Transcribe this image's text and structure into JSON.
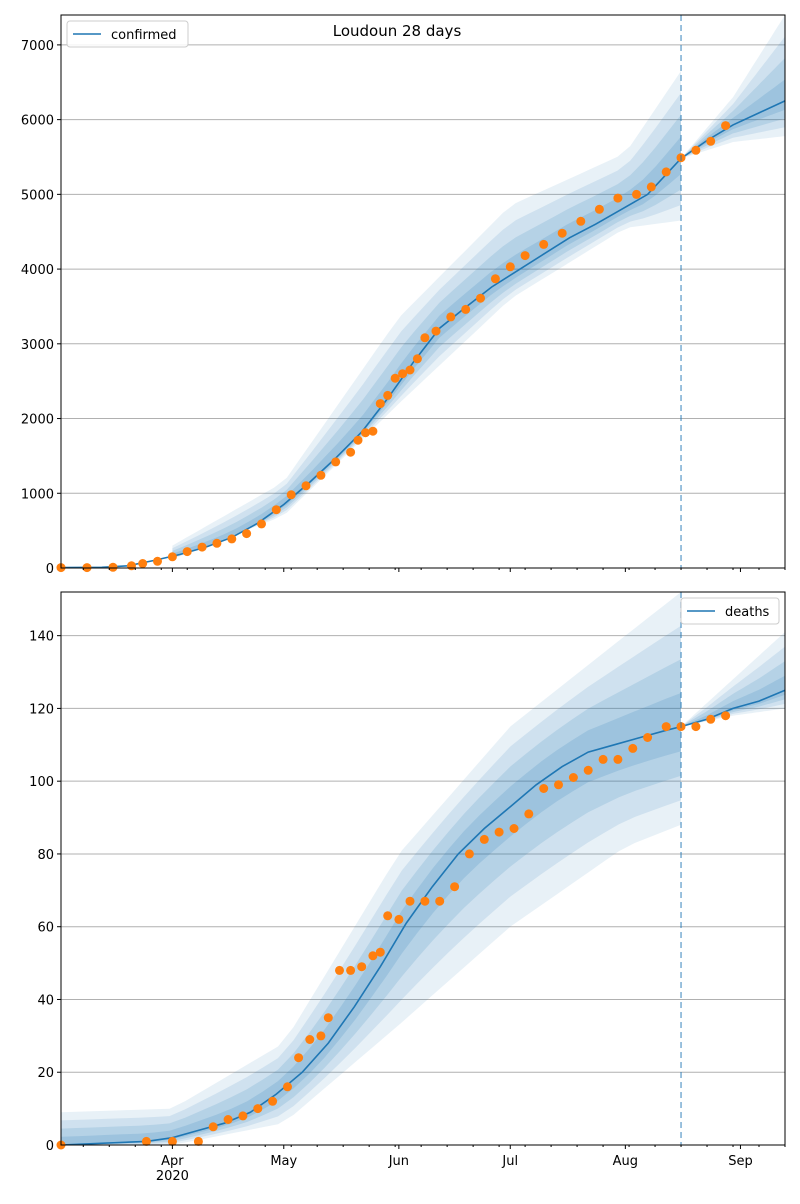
{
  "figure_title": "Loudoun 28 days",
  "colors": {
    "model": "#1f77b4",
    "observed": "#ff7f0e",
    "band": "#1f77b4",
    "grid": "#b0b0b0",
    "forecast_line": "#1f77b4"
  },
  "chart_data": [
    {
      "type": "line",
      "title": "Loudoun 28 days",
      "xlabel": "",
      "ylabel": "",
      "x_range": [
        "2020-03-02",
        "2020-09-13"
      ],
      "ylim": [
        0,
        7400
      ],
      "yticks": [
        0,
        1000,
        2000,
        3000,
        4000,
        5000,
        6000,
        7000
      ],
      "xticks": [],
      "grid": "horizontal",
      "legend": {
        "position": "top-left",
        "entries": [
          "confirmed"
        ]
      },
      "forecast_start": "2020-08-16",
      "series": [
        {
          "name": "confirmed",
          "kind": "model",
          "x": [
            "2020-03-02",
            "2020-03-13",
            "2020-03-20",
            "2020-03-27",
            "2020-04-03",
            "2020-04-10",
            "2020-04-17",
            "2020-04-24",
            "2020-05-01",
            "2020-05-08",
            "2020-05-15",
            "2020-05-22",
            "2020-05-29",
            "2020-06-05",
            "2020-06-12",
            "2020-06-19",
            "2020-06-26",
            "2020-07-03",
            "2020-07-10",
            "2020-07-17",
            "2020-07-24",
            "2020-07-31",
            "2020-08-07",
            "2020-08-16",
            "2020-08-23",
            "2020-08-30",
            "2020-09-06",
            "2020-09-13"
          ],
          "y": [
            5,
            10,
            30,
            100,
            180,
            280,
            410,
            600,
            850,
            1150,
            1470,
            1820,
            2270,
            2760,
            3210,
            3490,
            3760,
            3980,
            4200,
            4420,
            4600,
            4800,
            5000,
            5480,
            5720,
            5930,
            6090,
            6250
          ]
        },
        {
          "name": "",
          "kind": "observed",
          "x": [
            "2020-03-02",
            "2020-03-09",
            "2020-03-16",
            "2020-03-21",
            "2020-03-24",
            "2020-03-28",
            "2020-04-01",
            "2020-04-05",
            "2020-04-09",
            "2020-04-13",
            "2020-04-17",
            "2020-04-21",
            "2020-04-25",
            "2020-04-29",
            "2020-05-03",
            "2020-05-07",
            "2020-05-11",
            "2020-05-15",
            "2020-05-19",
            "2020-05-21",
            "2020-05-23",
            "2020-05-25",
            "2020-05-27",
            "2020-05-29",
            "2020-05-31",
            "2020-06-02",
            "2020-06-04",
            "2020-06-06",
            "2020-06-08",
            "2020-06-11",
            "2020-06-15",
            "2020-06-19",
            "2020-06-23",
            "2020-06-27",
            "2020-07-01",
            "2020-07-05",
            "2020-07-10",
            "2020-07-15",
            "2020-07-20",
            "2020-07-25",
            "2020-07-30",
            "2020-08-04",
            "2020-08-08",
            "2020-08-12",
            "2020-08-16",
            "2020-08-20",
            "2020-08-24",
            "2020-08-28"
          ],
          "y": [
            5,
            5,
            10,
            30,
            60,
            90,
            150,
            220,
            280,
            330,
            390,
            460,
            590,
            780,
            980,
            1100,
            1240,
            1420,
            1550,
            1710,
            1810,
            1830,
            2200,
            2310,
            2540,
            2600,
            2650,
            2800,
            3080,
            3170,
            3360,
            3460,
            3610,
            3870,
            4030,
            4180,
            4330,
            4480,
            4640,
            4800,
            4950,
            5000,
            5100,
            5300,
            5490,
            5590,
            5710,
            5920
          ]
        }
      ],
      "band_envelopes": [
        {
          "x": [
            "2020-04-01",
            "2020-05-01",
            "2020-06-01",
            "2020-07-01",
            "2020-08-01",
            "2020-08-16"
          ],
          "lower": [
            120,
            700,
            2200,
            3600,
            4550,
            4650
          ],
          "upper": [
            300,
            1150,
            3350,
            4850,
            5550,
            6650
          ]
        },
        {
          "x": [
            "2020-08-16",
            "2020-08-30",
            "2020-09-13"
          ],
          "lower": [
            5480,
            5700,
            5780
          ],
          "upper": [
            5480,
            6300,
            7400
          ]
        }
      ]
    },
    {
      "type": "line",
      "title": "",
      "xlabel": "",
      "ylabel": "",
      "x_range": [
        "2020-03-02",
        "2020-09-13"
      ],
      "ylim": [
        0,
        152
      ],
      "yticks": [
        0,
        20,
        40,
        60,
        80,
        100,
        120,
        140
      ],
      "xticks": [
        "Apr\n2020",
        "May",
        "Jun",
        "Jul",
        "Aug",
        "Sep"
      ],
      "grid": "horizontal",
      "legend": {
        "position": "top-right",
        "entries": [
          "deaths"
        ]
      },
      "forecast_start": "2020-08-16",
      "series": [
        {
          "name": "deaths",
          "kind": "model",
          "x": [
            "2020-03-02",
            "2020-03-25",
            "2020-04-01",
            "2020-04-08",
            "2020-04-15",
            "2020-04-22",
            "2020-04-29",
            "2020-05-06",
            "2020-05-13",
            "2020-05-20",
            "2020-05-27",
            "2020-06-03",
            "2020-06-10",
            "2020-06-17",
            "2020-06-24",
            "2020-07-01",
            "2020-07-08",
            "2020-07-15",
            "2020-07-22",
            "2020-07-29",
            "2020-08-05",
            "2020-08-12",
            "2020-08-16",
            "2020-08-23",
            "2020-08-30",
            "2020-09-06",
            "2020-09-13"
          ],
          "y": [
            0,
            1,
            2,
            4,
            6,
            9,
            14,
            20,
            28,
            38,
            49,
            61,
            71,
            80,
            87,
            93,
            99,
            104,
            108,
            110,
            112,
            114,
            115,
            117,
            120,
            122,
            125
          ]
        },
        {
          "name": "",
          "kind": "observed",
          "x": [
            "2020-03-02",
            "2020-03-25",
            "2020-04-01",
            "2020-04-08",
            "2020-04-12",
            "2020-04-16",
            "2020-04-20",
            "2020-04-24",
            "2020-04-28",
            "2020-05-02",
            "2020-05-05",
            "2020-05-08",
            "2020-05-11",
            "2020-05-13",
            "2020-05-16",
            "2020-05-19",
            "2020-05-22",
            "2020-05-25",
            "2020-05-27",
            "2020-05-29",
            "2020-06-01",
            "2020-06-04",
            "2020-06-08",
            "2020-06-12",
            "2020-06-16",
            "2020-06-20",
            "2020-06-24",
            "2020-06-28",
            "2020-07-02",
            "2020-07-06",
            "2020-07-10",
            "2020-07-14",
            "2020-07-18",
            "2020-07-22",
            "2020-07-26",
            "2020-07-30",
            "2020-08-03",
            "2020-08-07",
            "2020-08-12",
            "2020-08-16",
            "2020-08-20",
            "2020-08-24",
            "2020-08-28"
          ],
          "y": [
            0,
            1,
            1,
            1,
            5,
            7,
            8,
            10,
            12,
            16,
            24,
            29,
            30,
            35,
            48,
            48,
            49,
            52,
            53,
            63,
            62,
            67,
            67,
            67,
            71,
            80,
            84,
            86,
            87,
            91,
            98,
            99,
            101,
            103,
            106,
            106,
            109,
            112,
            115,
            115,
            115,
            117,
            118
          ]
        }
      ],
      "band_envelopes": [
        {
          "x": [
            "2020-03-02",
            "2020-04-01",
            "2020-05-01",
            "2020-06-01",
            "2020-07-01",
            "2020-08-01",
            "2020-08-16"
          ],
          "lower": [
            0,
            0,
            6,
            33,
            60,
            82,
            88
          ],
          "upper": [
            9,
            10,
            28,
            80,
            115,
            140,
            152
          ]
        },
        {
          "x": [
            "2020-08-16",
            "2020-08-30",
            "2020-09-13"
          ],
          "lower": [
            115,
            118,
            120
          ],
          "upper": [
            115,
            128,
            141
          ]
        }
      ]
    }
  ]
}
